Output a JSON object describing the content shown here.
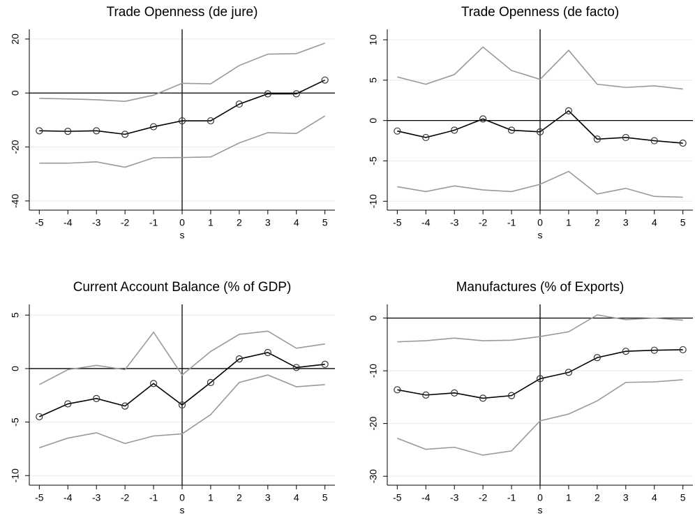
{
  "chart_data": [
    {
      "type": "line",
      "title": "Trade Openness (de jure)",
      "x_label": "s",
      "x": [
        -5,
        -4,
        -3,
        -2,
        -1,
        0,
        1,
        2,
        3,
        4,
        5
      ],
      "series": [
        {
          "color": "#000000",
          "markers": true,
          "values": [
            -14,
            -14.2,
            -14,
            -15.3,
            -12.5,
            -10.3,
            -10.3,
            -4.1,
            -0.3,
            -0.3,
            4.8
          ]
        },
        {
          "color": "#999999",
          "markers": false,
          "values": [
            -2,
            -2.2,
            -2.5,
            -3.1,
            -0.8,
            3.6,
            3.4,
            10.2,
            14.4,
            14.6,
            18.5
          ]
        },
        {
          "color": "#999999",
          "markers": false,
          "values": [
            -26,
            -26,
            -25.5,
            -27.5,
            -24,
            -23.9,
            -23.7,
            -18.5,
            -14.7,
            -15,
            -8.5
          ]
        }
      ],
      "xlim": [
        -5.35,
        5.35
      ],
      "xticks": [
        -5,
        -4,
        -3,
        -2,
        -1,
        0,
        1,
        2,
        3,
        4,
        5
      ],
      "ylim": [
        -43.4,
        23.6
      ],
      "yticks": [
        -40,
        -20,
        0,
        20
      ],
      "grid": true,
      "ref_x": 0,
      "ref_y": 0
    },
    {
      "type": "line",
      "title": "Trade Openness (de facto)",
      "x_label": "s",
      "x": [
        -5,
        -4,
        -3,
        -2,
        -1,
        0,
        1,
        2,
        3,
        4,
        5
      ],
      "series": [
        {
          "color": "#000000",
          "markers": true,
          "values": [
            -1.3,
            -2.1,
            -1.2,
            0.2,
            -1.2,
            -1.4,
            1.2,
            -2.3,
            -2.1,
            -2.5,
            -2.8
          ]
        },
        {
          "color": "#999999",
          "markers": false,
          "values": [
            5.4,
            4.5,
            5.7,
            9.1,
            6.2,
            5.1,
            8.7,
            4.5,
            4.1,
            4.3,
            3.9
          ]
        },
        {
          "color": "#999999",
          "markers": false,
          "values": [
            -8.2,
            -8.8,
            -8.1,
            -8.6,
            -8.8,
            -7.9,
            -6.3,
            -9.1,
            -8.4,
            -9.4,
            -9.5
          ]
        }
      ],
      "xlim": [
        -5.35,
        5.35
      ],
      "xticks": [
        -5,
        -4,
        -3,
        -2,
        -1,
        0,
        1,
        2,
        3,
        4,
        5
      ],
      "ylim": [
        -11.1,
        11.3
      ],
      "yticks": [
        -10,
        -5,
        0,
        5,
        10
      ],
      "grid": true,
      "ref_x": 0,
      "ref_y": 0
    },
    {
      "type": "line",
      "title": "Current Account Balance (% of GDP)",
      "x_label": "s",
      "x": [
        -5,
        -4,
        -3,
        -2,
        -1,
        0,
        1,
        2,
        3,
        4,
        5
      ],
      "series": [
        {
          "color": "#000000",
          "markers": true,
          "values": [
            -4.5,
            -3.3,
            -2.8,
            -3.5,
            -1.4,
            -3.4,
            -1.3,
            0.9,
            1.5,
            0.1,
            0.4
          ]
        },
        {
          "color": "#999999",
          "markers": false,
          "values": [
            -1.5,
            -0.1,
            0.3,
            -0.1,
            3.4,
            -0.6,
            1.6,
            3.2,
            3.5,
            1.9,
            2.3
          ]
        },
        {
          "color": "#999999",
          "markers": false,
          "values": [
            -7.4,
            -6.5,
            -6,
            -7,
            -6.3,
            -6.1,
            -4.3,
            -1.3,
            -0.6,
            -1.7,
            -1.5
          ]
        }
      ],
      "xlim": [
        -5.35,
        5.35
      ],
      "xticks": [
        -5,
        -4,
        -3,
        -2,
        -1,
        0,
        1,
        2,
        3,
        4,
        5
      ],
      "ylim": [
        -10.9,
        6
      ],
      "yticks": [
        -10,
        -5,
        0,
        5
      ],
      "grid": true,
      "ref_x": 0,
      "ref_y": 0
    },
    {
      "type": "line",
      "title": "Manufactures (% of Exports)",
      "x_label": "s",
      "x": [
        -5,
        -4,
        -3,
        -2,
        -1,
        0,
        1,
        2,
        3,
        4,
        5
      ],
      "series": [
        {
          "color": "#000000",
          "markers": true,
          "values": [
            -13.6,
            -14.6,
            -14.2,
            -15.2,
            -14.7,
            -11.5,
            -10.3,
            -7.5,
            -6.3,
            -6.1,
            -6
          ]
        },
        {
          "color": "#999999",
          "markers": false,
          "values": [
            -4.5,
            -4.3,
            -3.8,
            -4.3,
            -4.2,
            -3.5,
            -2.6,
            0.6,
            -0.3,
            0,
            -0.4
          ]
        },
        {
          "color": "#999999",
          "markers": false,
          "values": [
            -22.8,
            -24.9,
            -24.5,
            -26,
            -25.2,
            -19.5,
            -18.2,
            -15.7,
            -12.2,
            -12.1,
            -11.7
          ]
        }
      ],
      "xlim": [
        -5.35,
        5.35
      ],
      "xticks": [
        -5,
        -4,
        -3,
        -2,
        -1,
        0,
        1,
        2,
        3,
        4,
        5
      ],
      "ylim": [
        -31.7,
        2.6
      ],
      "yticks": [
        -30,
        -20,
        -10,
        0
      ],
      "grid": true,
      "ref_x": 0,
      "ref_y": 0
    }
  ]
}
